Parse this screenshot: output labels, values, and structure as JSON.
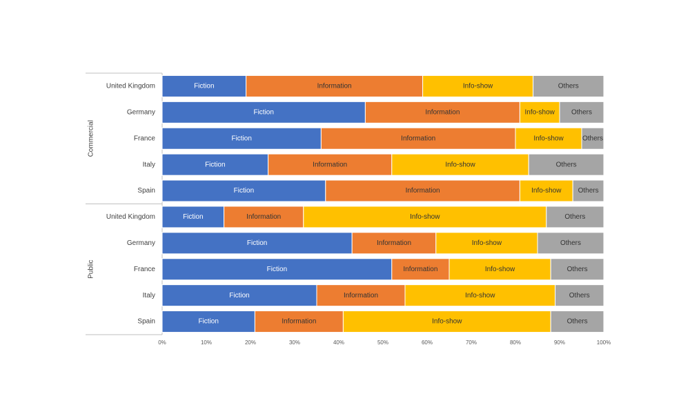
{
  "chart_data": {
    "type": "stacked-bar-horizontal-percent",
    "groups": [
      {
        "name": "Commercial",
        "categories": [
          "United Kingdom",
          "Germany",
          "France",
          "Italy",
          "Spain"
        ]
      },
      {
        "name": "Public",
        "categories": [
          "United Kingdom",
          "Germany",
          "France",
          "Italy",
          "Spain"
        ]
      }
    ],
    "series": [
      {
        "name": "Fiction",
        "color": "#4472c4",
        "values": [
          19,
          46,
          36,
          24,
          37,
          14,
          43,
          52,
          35,
          21
        ]
      },
      {
        "name": "Information",
        "color": "#ed7d31",
        "values": [
          40,
          35,
          44,
          28,
          44,
          18,
          19,
          13,
          20,
          20
        ]
      },
      {
        "name": "Info-show",
        "color": "#ffc000",
        "values": [
          25,
          9,
          15,
          31,
          12,
          55,
          23,
          23,
          34,
          47
        ]
      },
      {
        "name": "Others",
        "color": "#a5a5a5",
        "values": [
          16,
          10,
          5,
          17,
          7,
          13,
          15,
          12,
          11,
          12
        ]
      }
    ],
    "xlim": [
      0,
      100
    ],
    "xticks": [
      {
        "value": 0,
        "label": "0%"
      },
      {
        "value": 10,
        "label": "10%"
      },
      {
        "value": 20,
        "label": "20%"
      },
      {
        "value": 30,
        "label": "30%"
      },
      {
        "value": 40,
        "label": "40%"
      },
      {
        "value": 50,
        "label": "50%"
      },
      {
        "value": 60,
        "label": "60%"
      },
      {
        "value": 70,
        "label": "70%"
      },
      {
        "value": 80,
        "label": "80%"
      },
      {
        "value": 90,
        "label": "90%"
      },
      {
        "value": 100,
        "label": "100%"
      }
    ]
  }
}
